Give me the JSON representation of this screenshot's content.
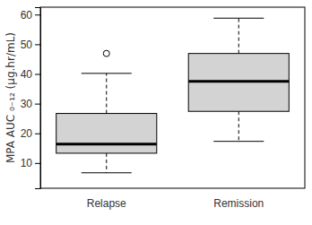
{
  "chart_data": {
    "type": "box",
    "y_label": "MPA AUC ₀₋₁₂ (µg.hr/mL)",
    "categories": [
      "Relapse",
      "Remission"
    ],
    "boxes": [
      {
        "min": 6.7,
        "q1": 13.3,
        "median": 16.4,
        "q3": 26.7,
        "max": 40.2,
        "outliers": [
          46.9
        ]
      },
      {
        "min": 17.3,
        "q1": 27.4,
        "median": 37.5,
        "q3": 46.9,
        "max": 58.8,
        "outliers": []
      }
    ],
    "color": "#d3d3d3",
    "ylim": [
      1.5,
      62.5
    ],
    "yticks": [
      10,
      20,
      30,
      40,
      50,
      60
    ]
  }
}
